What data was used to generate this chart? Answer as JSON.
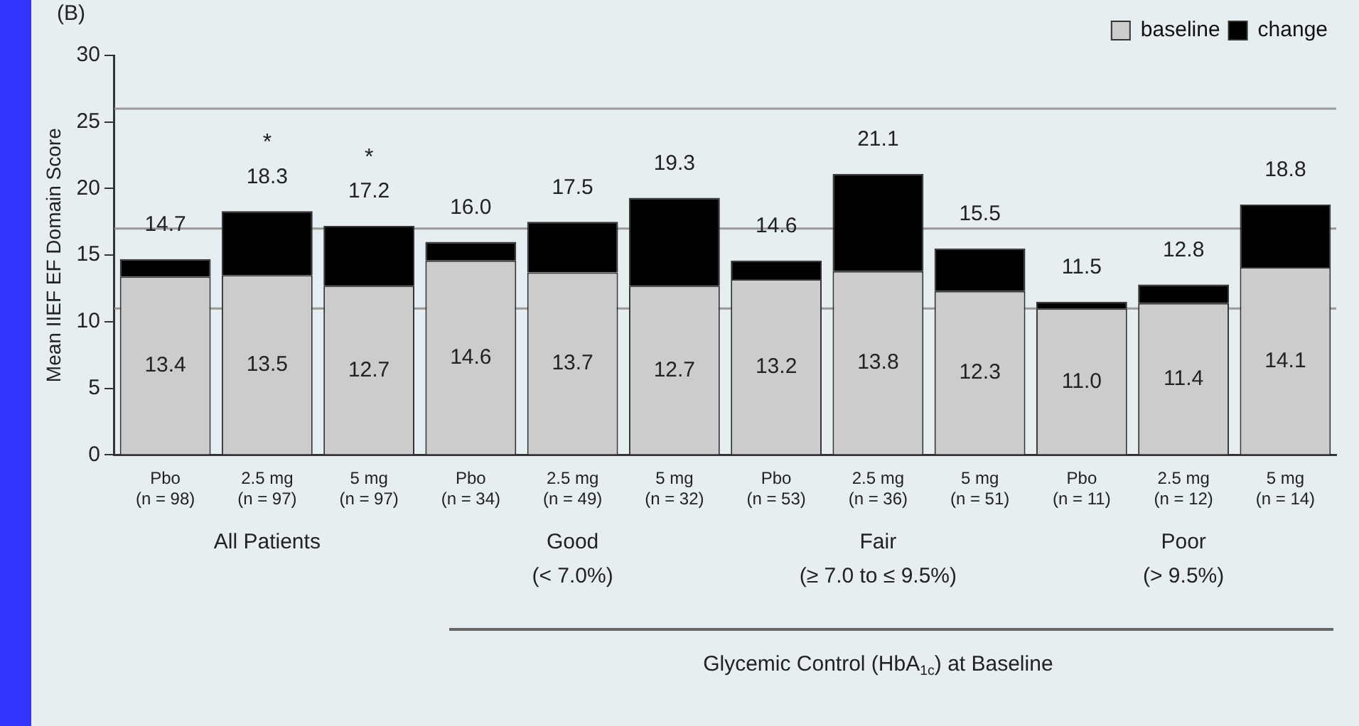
{
  "chart_data": {
    "type": "bar",
    "title": "(B)",
    "ylabel": "Mean IIEF EF Domain Score",
    "categories": [
      "Pbo\n(n = 98)",
      "2.5 mg\n(n = 97)",
      "5 mg\n(n = 97)",
      "Pbo\n(n = 34)",
      "2.5 mg\n(n = 49)",
      "5 mg\n(n = 32)",
      "Pbo\n(n = 53)",
      "2.5 mg\n(n = 36)",
      "5 mg\n(n = 51)",
      "Pbo\n(n = 11)",
      "2.5 mg\n(n = 12)",
      "5 mg\n(n = 14)"
    ],
    "stacked": true,
    "series": [
      {
        "name": "baseline",
        "color": "#cccccc",
        "values": [
          13.4,
          13.5,
          12.7,
          14.6,
          13.7,
          12.7,
          13.2,
          13.8,
          12.3,
          11.0,
          11.4,
          14.1
        ],
        "value_labels": [
          "13.4",
          "13.5",
          "12.7",
          "14.6",
          "13.7",
          "12.7",
          "13.2",
          "13.8",
          "12.3",
          "11.0",
          "11.4",
          "14.1"
        ]
      },
      {
        "name": "change",
        "color": "#000000",
        "values": [
          1.3,
          4.8,
          4.5,
          1.4,
          3.8,
          6.6,
          1.4,
          7.3,
          3.2,
          0.5,
          1.4,
          4.7
        ]
      }
    ],
    "totals": [
      "14.7",
      "18.3",
      "17.2",
      "16.0",
      "17.5",
      "19.3",
      "14.6",
      "21.1",
      "15.5",
      "11.5",
      "12.8",
      "18.8"
    ],
    "ylim": [
      0,
      30
    ],
    "yticks": [
      0,
      5,
      10,
      15,
      20,
      25,
      30
    ],
    "grid": false,
    "legend": "top right",
    "ref_lines": [
      {
        "axis": "y",
        "value": 26,
        "color": "#999999"
      },
      {
        "axis": "y",
        "value": 17,
        "color": "#999999"
      },
      {
        "axis": "y",
        "value": 11,
        "color": "#999999"
      }
    ],
    "annotations": [
      "All Patients",
      "Good\n(< 7.0%)",
      "Fair\n(≥ 7.0 to ≤ 9.5%)",
      "Poor\n(> 9.5%)",
      "Glycemic Control (HbA$_{1c}$) at Baseline",
      {
        "text": "*",
        "x": "2.5 mg\n(n = 97)",
        "y": 18.3
      },
      {
        "text": "*",
        "x": "5 mg\n(n = 97)",
        "y": 17.2
      }
    ]
  }
}
